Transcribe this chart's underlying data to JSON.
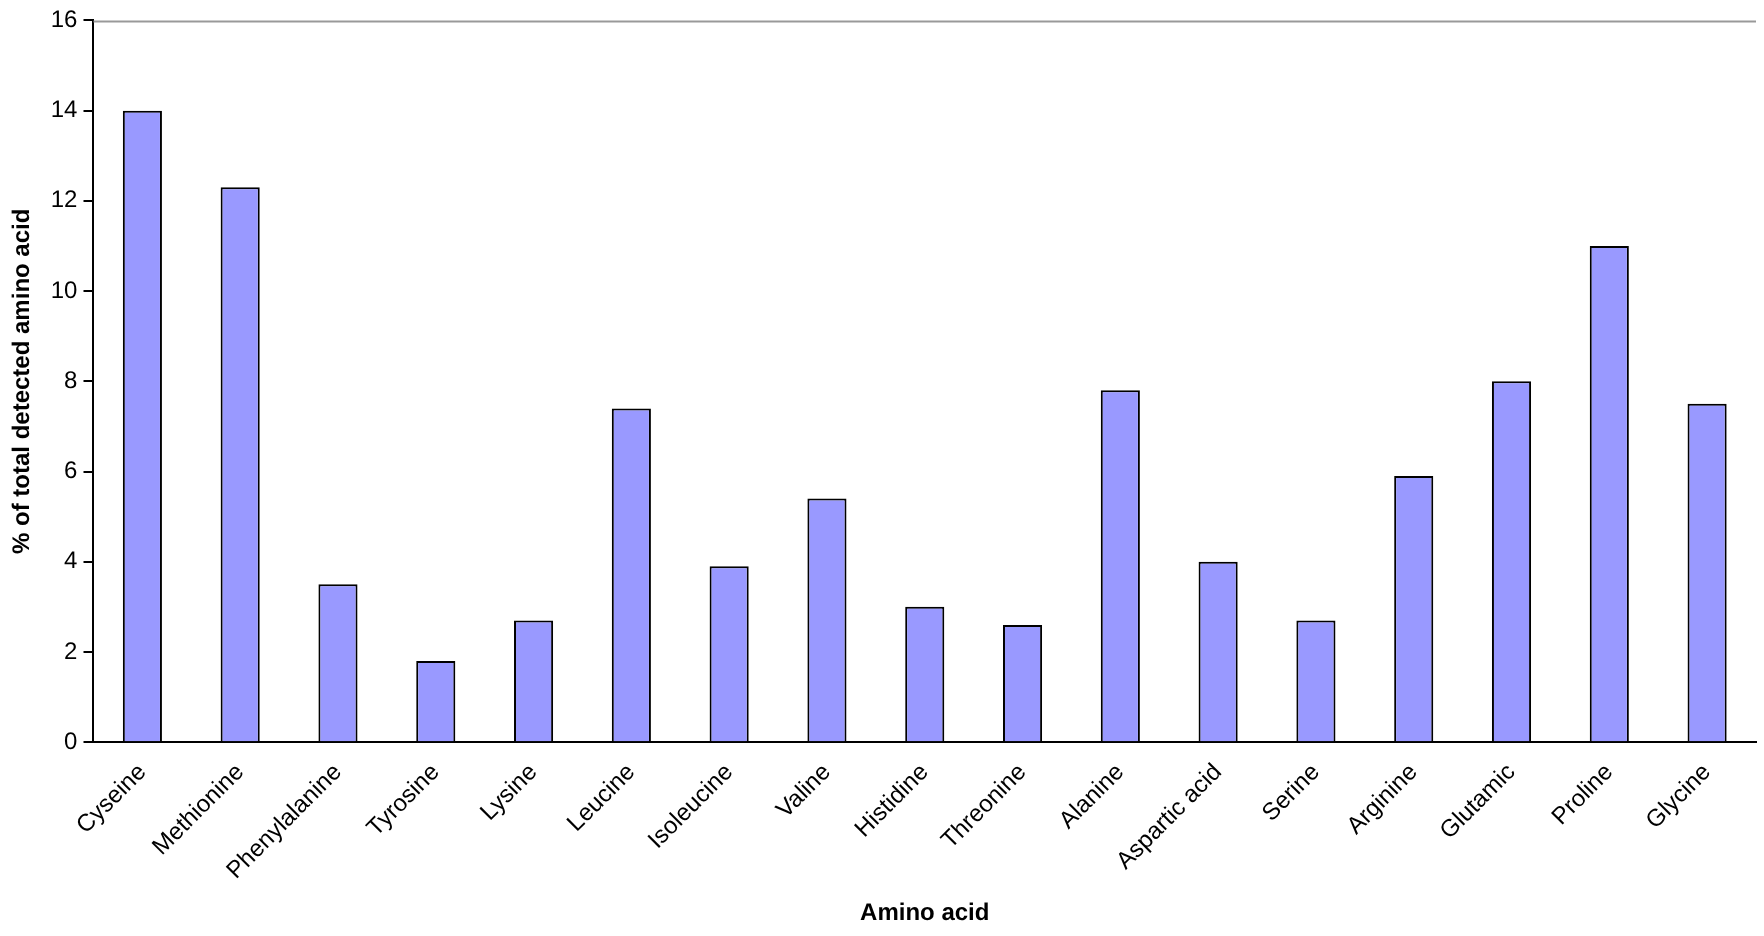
{
  "chart_data": {
    "type": "bar",
    "xlabel": "Amino acid",
    "ylabel": "% of total detected amino acid",
    "categories": [
      "Cyseine",
      "Methionine",
      "Phenylalanine",
      "Tyrosine",
      "Lysine",
      "Leucine",
      "Isoleucine",
      "Valine",
      "Histidine",
      "Threonine",
      "Alanine",
      "Aspartic acid",
      "Serine",
      "Arginine",
      "Glutamic",
      "Proline",
      "Glycine"
    ],
    "values": [
      14,
      12.3,
      3.5,
      1.8,
      2.7,
      7.4,
      3.9,
      5.4,
      3.0,
      2.6,
      7.8,
      4.0,
      2.7,
      5.9,
      8.0,
      11.0,
      7.5
    ],
    "color": "#9999ff",
    "ylim": [
      0,
      16
    ],
    "yticks": [
      0,
      2,
      4,
      6,
      8,
      10,
      12,
      14,
      16
    ],
    "grid": false,
    "legend": false
  }
}
